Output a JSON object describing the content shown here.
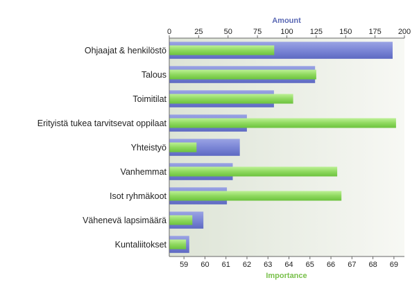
{
  "chart_data": {
    "type": "bar",
    "categories": [
      "Ohjaajat & henkilöstö",
      "Talous",
      "Toimitilat",
      "Erityistä tukea tarvitsevat oppilaat",
      "Yhteistyö",
      "Vanhemmat",
      "Isot ryhmäkoot",
      "Vähenevä lapsimäärä",
      "Kuntaliitokset"
    ],
    "series": [
      {
        "name": "Amount",
        "axis": "top",
        "color": "#7b86d6",
        "values": [
          190,
          124,
          89,
          66,
          60,
          54,
          49,
          29,
          17
        ]
      },
      {
        "name": "Importance",
        "axis": "bottom",
        "color": "#8fd95f",
        "values": [
          63.3,
          65.3,
          64.2,
          69.1,
          59.6,
          66.3,
          66.5,
          59.4,
          59.1
        ]
      }
    ],
    "top_axis": {
      "label": "Amount",
      "range": [
        0,
        200
      ],
      "ticks": [
        "0",
        "25",
        "50",
        "75",
        "100",
        "125",
        "150",
        "175",
        "200"
      ]
    },
    "bottom_axis": {
      "label": "Importance",
      "range": [
        58.3,
        69.5
      ],
      "ticks": [
        "59",
        "60",
        "61",
        "62",
        "63",
        "64",
        "65",
        "66",
        "67",
        "68",
        "69"
      ]
    },
    "colors": {
      "top_label": "#5a68b4",
      "bottom_label": "#78c04a",
      "plot_bg_left": "#dde4d6",
      "plot_bg_right": "#f7f8f4"
    },
    "legend": "none",
    "grid": false
  }
}
